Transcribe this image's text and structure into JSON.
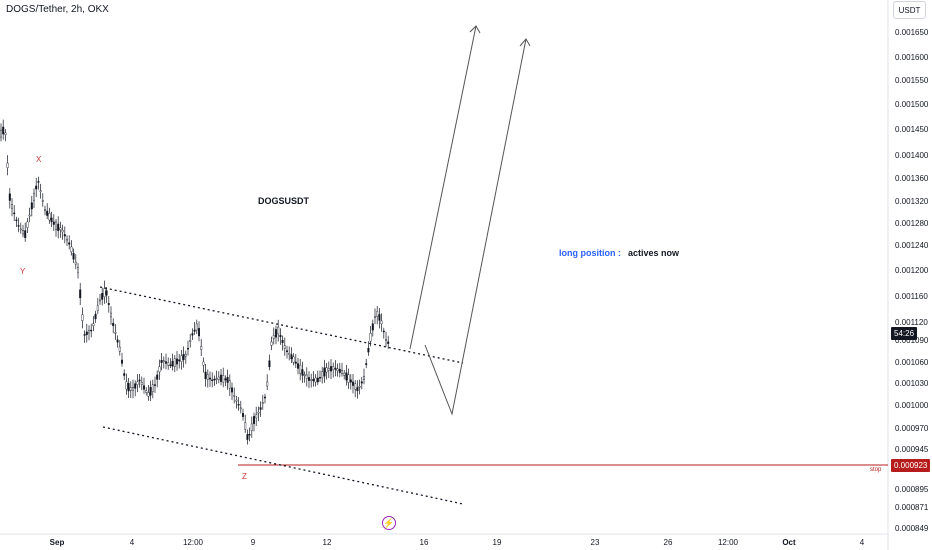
{
  "header": {
    "title": "DOGS/Tether, 2h, OKX",
    "currency_button": "USDT"
  },
  "annotations": {
    "symbol": "DOGSUSDT",
    "position_label": "long position :",
    "position_status": "actives now",
    "stop_label": "stop",
    "waves": {
      "x": "X",
      "y": "Y",
      "z": "Z"
    }
  },
  "price_badges": {
    "countdown": "54:26",
    "stop_price": "0.000923"
  },
  "colors": {
    "stop_line": "#b71c1c",
    "position_label": "#2962ff",
    "wave_labels": "#d23a3a",
    "events_icon": "#9c27b0"
  },
  "icons": {
    "events": "lightning-icon"
  },
  "chart_data": {
    "type": "candlestick",
    "y_axis_ticks": [
      "0.001650",
      "0.001600",
      "0.001550",
      "0.001500",
      "0.001450",
      "0.001400",
      "0.001360",
      "0.001320",
      "0.001280",
      "0.001240",
      "0.001200",
      "0.001160",
      "0.001120",
      "0.001090",
      "0.001060",
      "0.001030",
      "0.001000",
      "0.000970",
      "0.000945",
      "0.000923",
      "0.000895",
      "0.000871",
      "0.000849"
    ],
    "x_axis_ticks": [
      "Sep",
      "4",
      "12:00",
      "9",
      "12",
      "16",
      "19",
      "23",
      "26",
      "12:00",
      "Oct",
      "4"
    ],
    "stop_level": 0.000923,
    "grid": false
  }
}
